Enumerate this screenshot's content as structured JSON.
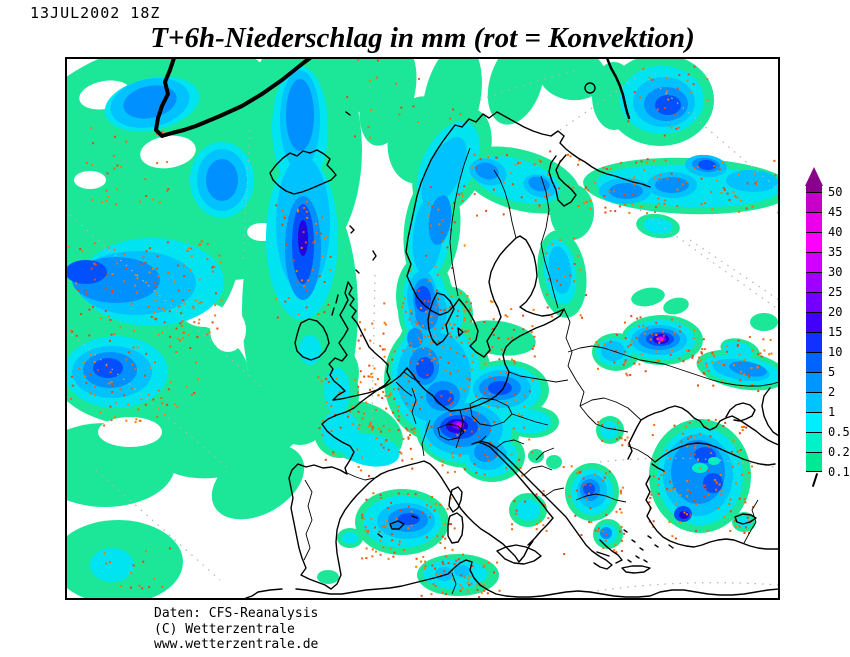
{
  "header": {
    "datetime": "13JUL2002 18Z",
    "title": "T+6h-Niederschlag in mm (rot = Konvektion)"
  },
  "legend": {
    "unit": "mm",
    "arrow_color": "#8A008A",
    "labels": [
      "50",
      "45",
      "40",
      "35",
      "30",
      "25",
      "20",
      "15",
      "10",
      "5",
      "2",
      "1",
      "0.5",
      "0.2",
      "0.1"
    ],
    "segment_colors": [
      "#C800C8",
      "#EB00EB",
      "#FF00FF",
      "#D200FF",
      "#A000FF",
      "#7300FF",
      "#4100FA",
      "#1430FF",
      "#0064FF",
      "#0096FF",
      "#00C3FF",
      "#00EEFF",
      "#00F2C8",
      "#00E796"
    ]
  },
  "map": {
    "colors": {
      "no_precipitation": "#FFFFFF",
      "light_precip_green": "#1CE798",
      "moderate_cyan": "#00E4F2",
      "heavy_blue": "#0090FF",
      "intense_violet": "#8800FF",
      "extreme_magenta": "#E600FF",
      "convection_stipple": "#F06414",
      "coastline": "#000000",
      "graticule": "#B3B3B3"
    }
  },
  "footer": {
    "line1": "Daten: CFS-Reanalysis",
    "line2": "(C) Wetterzentrale",
    "line3": "www.wetterzentrale.de"
  }
}
